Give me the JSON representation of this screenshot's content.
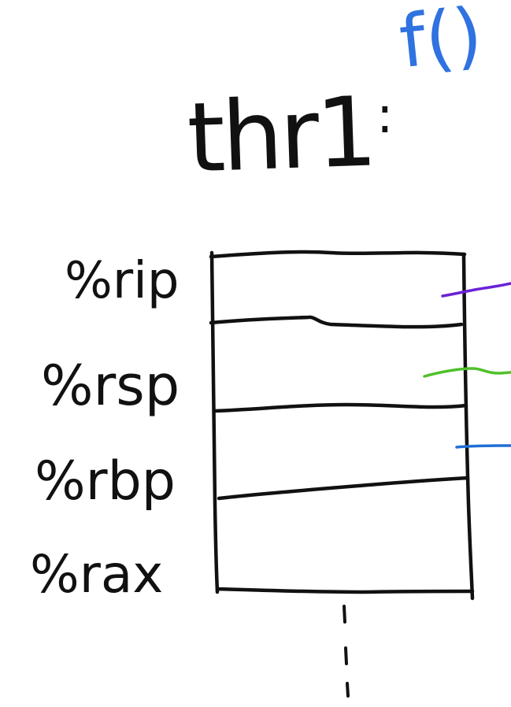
{
  "title": {
    "thread": "thr1",
    "colon": ":",
    "function": "f()"
  },
  "registers": [
    {
      "label": "%rip",
      "pointer_color": "#6a22d6"
    },
    {
      "label": "%rsp",
      "pointer_color": "#4fc12a"
    },
    {
      "label": "%rbp",
      "pointer_color": "#1f6fd6"
    },
    {
      "label": "%rax",
      "pointer_color": ""
    }
  ],
  "colors": {
    "ink": "#111111",
    "function_ink": "#2f72e0"
  }
}
